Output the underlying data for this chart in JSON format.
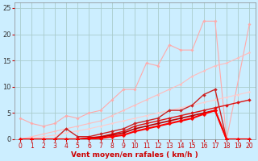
{
  "bg_color": "#cceeff",
  "grid_color": "#aacccc",
  "xlabel": "Vent moyen/en rafales ( km/h )",
  "xlim": [
    -0.5,
    20.5
  ],
  "ylim": [
    0,
    26
  ],
  "xticks": [
    0,
    1,
    2,
    3,
    4,
    5,
    6,
    7,
    8,
    9,
    10,
    11,
    12,
    13,
    14,
    15,
    16,
    17,
    18,
    19,
    20
  ],
  "yticks": [
    0,
    5,
    10,
    15,
    20,
    25
  ],
  "series": [
    {
      "x": [
        0,
        1,
        2,
        3,
        4,
        5,
        6,
        7,
        8,
        9,
        10,
        11,
        12,
        13,
        14,
        15,
        16,
        17,
        18,
        20
      ],
      "y": [
        4.0,
        3.0,
        2.5,
        3.0,
        4.5,
        4.0,
        5.0,
        5.5,
        7.5,
        9.5,
        9.5,
        14.5,
        14.0,
        18.0,
        17.0,
        17.0,
        22.5,
        22.5,
        0.0,
        22.0
      ],
      "color": "#ffaaaa",
      "lw": 0.8,
      "marker": "D",
      "ms": 1.8,
      "zorder": 2
    },
    {
      "x": [
        0,
        1,
        2,
        3,
        4,
        5,
        6,
        7,
        8,
        9,
        10,
        11,
        12,
        13,
        14,
        15,
        16,
        17,
        18,
        19,
        20
      ],
      "y": [
        0.0,
        0.5,
        1.0,
        1.5,
        2.0,
        2.5,
        3.0,
        3.5,
        4.5,
        5.5,
        6.5,
        7.5,
        8.5,
        9.5,
        10.5,
        12.0,
        13.0,
        14.0,
        14.5,
        15.5,
        16.5
      ],
      "color": "#ffbbbb",
      "lw": 0.8,
      "marker": "D",
      "ms": 1.5,
      "zorder": 2
    },
    {
      "x": [
        0,
        1,
        2,
        3,
        4,
        5,
        6,
        7,
        8,
        9,
        10,
        11,
        12,
        13,
        14,
        15,
        16,
        17,
        18,
        19,
        20
      ],
      "y": [
        0.0,
        0.2,
        0.5,
        0.8,
        1.2,
        1.6,
        2.0,
        2.5,
        3.0,
        3.5,
        4.0,
        4.5,
        5.0,
        5.5,
        6.0,
        6.5,
        7.0,
        7.5,
        8.0,
        8.5,
        9.0
      ],
      "color": "#ffcccc",
      "lw": 0.8,
      "marker": "D",
      "ms": 1.5,
      "zorder": 2
    },
    {
      "x": [
        0,
        1,
        2,
        3,
        4,
        5,
        6,
        7,
        8,
        9,
        10,
        11,
        12,
        13,
        14,
        15,
        16,
        17,
        18,
        19,
        20
      ],
      "y": [
        0.0,
        0.0,
        0.0,
        0.0,
        2.0,
        0.5,
        0.5,
        1.0,
        1.5,
        2.0,
        3.0,
        3.5,
        4.0,
        5.5,
        5.5,
        6.5,
        8.5,
        9.5,
        0.0,
        0.0,
        0.0
      ],
      "color": "#cc2222",
      "lw": 1.0,
      "marker": "D",
      "ms": 2.0,
      "zorder": 4
    },
    {
      "x": [
        0,
        1,
        2,
        3,
        4,
        5,
        6,
        7,
        8,
        9,
        10,
        11,
        12,
        13,
        14,
        15,
        16,
        17,
        18,
        19,
        20
      ],
      "y": [
        0.0,
        0.0,
        0.0,
        0.0,
        0.0,
        0.0,
        0.3,
        0.5,
        1.0,
        1.5,
        2.5,
        3.0,
        3.5,
        4.0,
        4.5,
        5.0,
        5.5,
        6.0,
        6.5,
        7.0,
        7.5
      ],
      "color": "#dd1111",
      "lw": 1.0,
      "marker": "D",
      "ms": 2.0,
      "zorder": 4
    },
    {
      "x": [
        0,
        1,
        2,
        3,
        4,
        5,
        6,
        7,
        8,
        9,
        10,
        11,
        12,
        13,
        14,
        15,
        16,
        17,
        18,
        19,
        20
      ],
      "y": [
        0.0,
        0.0,
        0.0,
        0.0,
        0.0,
        0.0,
        0.2,
        0.4,
        0.8,
        1.2,
        2.0,
        2.5,
        3.0,
        3.5,
        4.0,
        4.5,
        5.0,
        5.5,
        0.0,
        0.0,
        0.0
      ],
      "color": "#bb0000",
      "lw": 1.2,
      "marker": "D",
      "ms": 2.0,
      "zorder": 4
    },
    {
      "x": [
        0,
        1,
        2,
        3,
        4,
        5,
        6,
        7,
        8,
        9,
        10,
        11,
        12,
        13,
        14,
        15,
        16,
        17,
        18,
        19,
        20
      ],
      "y": [
        0.0,
        0.0,
        0.0,
        0.0,
        0.0,
        0.0,
        0.1,
        0.2,
        0.5,
        0.8,
        1.5,
        2.0,
        2.5,
        3.0,
        3.5,
        4.0,
        4.8,
        5.5,
        0.0,
        0.0,
        0.0
      ],
      "color": "#ff0000",
      "lw": 1.5,
      "marker": "D",
      "ms": 2.5,
      "zorder": 5
    }
  ]
}
